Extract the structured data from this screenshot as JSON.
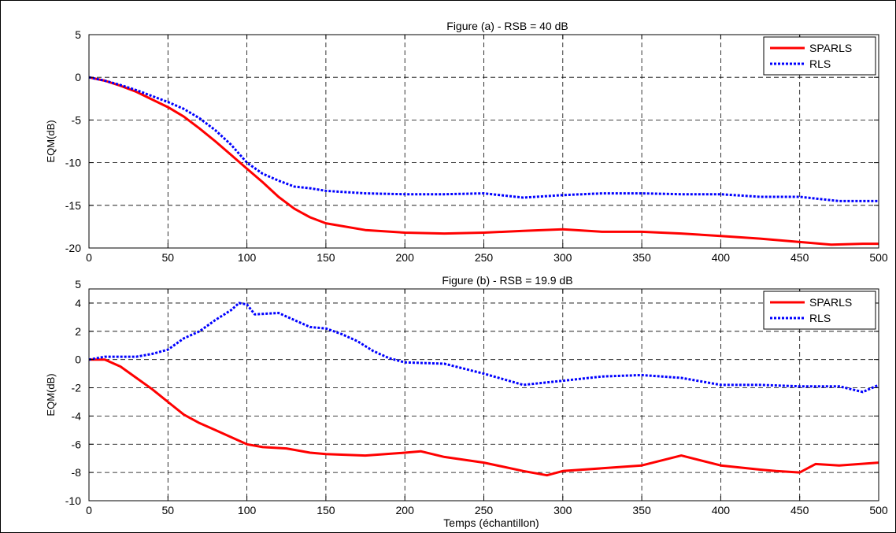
{
  "figure": {
    "xlabel": "Temps (échantillon)"
  },
  "chart_data": [
    {
      "type": "line",
      "title": "Figure (a) - RSB = 40 dB",
      "xlabel": "",
      "ylabel": "EQM(dB)",
      "xlim": [
        0,
        500
      ],
      "ylim": [
        -20,
        5
      ],
      "xticks": [
        0,
        50,
        100,
        150,
        200,
        250,
        300,
        350,
        400,
        450,
        500
      ],
      "yticks": [
        -20,
        -15,
        -10,
        -5,
        0,
        5
      ],
      "grid": true,
      "legend_position": "top-right",
      "series": [
        {
          "name": "SPARLS",
          "color": "#ff0000",
          "style": "solid",
          "x": [
            0,
            10,
            20,
            30,
            40,
            50,
            60,
            70,
            80,
            90,
            100,
            110,
            120,
            130,
            140,
            150,
            175,
            200,
            225,
            250,
            275,
            300,
            325,
            350,
            375,
            400,
            425,
            450,
            470,
            490,
            500
          ],
          "y": [
            0,
            -0.4,
            -1.0,
            -1.7,
            -2.6,
            -3.5,
            -4.6,
            -6.0,
            -7.5,
            -9.1,
            -10.7,
            -12.3,
            -14.0,
            -15.4,
            -16.4,
            -17.1,
            -17.9,
            -18.2,
            -18.3,
            -18.2,
            -18.0,
            -17.8,
            -18.1,
            -18.1,
            -18.3,
            -18.6,
            -18.9,
            -19.3,
            -19.6,
            -19.5,
            -19.5
          ]
        },
        {
          "name": "RLS",
          "color": "#0000ff",
          "style": "dotted",
          "x": [
            0,
            10,
            20,
            30,
            40,
            50,
            60,
            70,
            80,
            90,
            100,
            110,
            120,
            130,
            140,
            150,
            175,
            200,
            225,
            250,
            275,
            300,
            325,
            350,
            375,
            400,
            425,
            450,
            475,
            500
          ],
          "y": [
            0,
            -0.4,
            -0.9,
            -1.5,
            -2.2,
            -2.9,
            -3.7,
            -4.8,
            -6.2,
            -7.9,
            -10.0,
            -11.3,
            -12.1,
            -12.8,
            -13.0,
            -13.3,
            -13.6,
            -13.7,
            -13.7,
            -13.6,
            -14.1,
            -13.8,
            -13.6,
            -13.6,
            -13.7,
            -13.7,
            -14.0,
            -14.0,
            -14.5,
            -14.5
          ]
        }
      ]
    },
    {
      "type": "line",
      "title": "Figure (b) - RSB = 19.9 dB",
      "xlabel": "Temps (échantillon)",
      "ylabel": "EQM(dB)",
      "xlim": [
        0,
        500
      ],
      "ylim": [
        -10,
        5
      ],
      "xticks": [
        0,
        50,
        100,
        150,
        200,
        250,
        300,
        350,
        400,
        450,
        500
      ],
      "yticks": [
        -10,
        -8,
        -6,
        -4,
        -2,
        0,
        2,
        4
      ],
      "ytick_labels_extra": [
        "5"
      ],
      "grid": true,
      "legend_position": "top-right",
      "series": [
        {
          "name": "SPARLS",
          "color": "#ff0000",
          "style": "solid",
          "x": [
            0,
            10,
            20,
            30,
            40,
            50,
            60,
            70,
            80,
            90,
            100,
            110,
            125,
            140,
            150,
            175,
            200,
            210,
            225,
            250,
            275,
            290,
            300,
            325,
            350,
            375,
            400,
            425,
            435,
            450,
            460,
            475,
            500
          ],
          "y": [
            0,
            0,
            -0.5,
            -1.3,
            -2.1,
            -3.0,
            -3.9,
            -4.5,
            -5.0,
            -5.5,
            -6.0,
            -6.2,
            -6.3,
            -6.6,
            -6.7,
            -6.8,
            -6.6,
            -6.5,
            -6.9,
            -7.3,
            -7.9,
            -8.2,
            -7.9,
            -7.7,
            -7.5,
            -6.8,
            -7.5,
            -7.8,
            -7.9,
            -8.0,
            -7.4,
            -7.5,
            -7.3
          ]
        },
        {
          "name": "RLS",
          "color": "#0000ff",
          "style": "dotted",
          "x": [
            0,
            10,
            20,
            30,
            40,
            50,
            60,
            70,
            80,
            90,
            95,
            100,
            105,
            120,
            130,
            140,
            150,
            160,
            170,
            180,
            190,
            200,
            225,
            250,
            275,
            300,
            325,
            350,
            375,
            400,
            425,
            450,
            475,
            490,
            500
          ],
          "y": [
            0,
            0.2,
            0.2,
            0.2,
            0.4,
            0.7,
            1.5,
            2.0,
            2.8,
            3.5,
            4.0,
            3.9,
            3.2,
            3.3,
            2.8,
            2.3,
            2.2,
            1.8,
            1.3,
            0.6,
            0.1,
            -0.2,
            -0.3,
            -1.0,
            -1.8,
            -1.5,
            -1.2,
            -1.1,
            -1.3,
            -1.8,
            -1.8,
            -1.9,
            -1.9,
            -2.3,
            -1.8
          ]
        }
      ]
    }
  ]
}
